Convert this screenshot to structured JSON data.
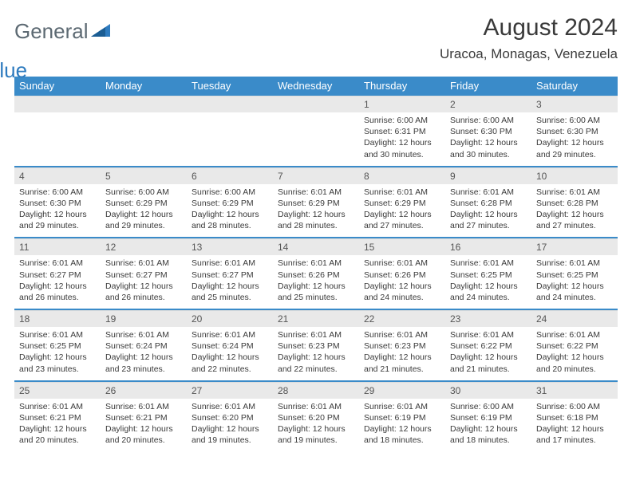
{
  "brand": {
    "word1": "General",
    "word2": "Blue"
  },
  "header": {
    "title": "August 2024",
    "location": "Uracoa, Monagas, Venezuela"
  },
  "colors": {
    "accent": "#3a8bc9",
    "header_text": "#ffffff",
    "daynum_bg": "#e9e9e9",
    "text": "#3a3a3a",
    "logo_grey": "#5d6a73",
    "logo_blue": "#2e7bbf",
    "background": "#ffffff"
  },
  "weekdays": [
    "Sunday",
    "Monday",
    "Tuesday",
    "Wednesday",
    "Thursday",
    "Friday",
    "Saturday"
  ],
  "weeks": [
    [
      {
        "n": "",
        "sunrise": "",
        "sunset": "",
        "daylight": ""
      },
      {
        "n": "",
        "sunrise": "",
        "sunset": "",
        "daylight": ""
      },
      {
        "n": "",
        "sunrise": "",
        "sunset": "",
        "daylight": ""
      },
      {
        "n": "",
        "sunrise": "",
        "sunset": "",
        "daylight": ""
      },
      {
        "n": "1",
        "sunrise": "Sunrise: 6:00 AM",
        "sunset": "Sunset: 6:31 PM",
        "daylight": "Daylight: 12 hours and 30 minutes."
      },
      {
        "n": "2",
        "sunrise": "Sunrise: 6:00 AM",
        "sunset": "Sunset: 6:30 PM",
        "daylight": "Daylight: 12 hours and 30 minutes."
      },
      {
        "n": "3",
        "sunrise": "Sunrise: 6:00 AM",
        "sunset": "Sunset: 6:30 PM",
        "daylight": "Daylight: 12 hours and 29 minutes."
      }
    ],
    [
      {
        "n": "4",
        "sunrise": "Sunrise: 6:00 AM",
        "sunset": "Sunset: 6:30 PM",
        "daylight": "Daylight: 12 hours and 29 minutes."
      },
      {
        "n": "5",
        "sunrise": "Sunrise: 6:00 AM",
        "sunset": "Sunset: 6:29 PM",
        "daylight": "Daylight: 12 hours and 29 minutes."
      },
      {
        "n": "6",
        "sunrise": "Sunrise: 6:00 AM",
        "sunset": "Sunset: 6:29 PM",
        "daylight": "Daylight: 12 hours and 28 minutes."
      },
      {
        "n": "7",
        "sunrise": "Sunrise: 6:01 AM",
        "sunset": "Sunset: 6:29 PM",
        "daylight": "Daylight: 12 hours and 28 minutes."
      },
      {
        "n": "8",
        "sunrise": "Sunrise: 6:01 AM",
        "sunset": "Sunset: 6:29 PM",
        "daylight": "Daylight: 12 hours and 27 minutes."
      },
      {
        "n": "9",
        "sunrise": "Sunrise: 6:01 AM",
        "sunset": "Sunset: 6:28 PM",
        "daylight": "Daylight: 12 hours and 27 minutes."
      },
      {
        "n": "10",
        "sunrise": "Sunrise: 6:01 AM",
        "sunset": "Sunset: 6:28 PM",
        "daylight": "Daylight: 12 hours and 27 minutes."
      }
    ],
    [
      {
        "n": "11",
        "sunrise": "Sunrise: 6:01 AM",
        "sunset": "Sunset: 6:27 PM",
        "daylight": "Daylight: 12 hours and 26 minutes."
      },
      {
        "n": "12",
        "sunrise": "Sunrise: 6:01 AM",
        "sunset": "Sunset: 6:27 PM",
        "daylight": "Daylight: 12 hours and 26 minutes."
      },
      {
        "n": "13",
        "sunrise": "Sunrise: 6:01 AM",
        "sunset": "Sunset: 6:27 PM",
        "daylight": "Daylight: 12 hours and 25 minutes."
      },
      {
        "n": "14",
        "sunrise": "Sunrise: 6:01 AM",
        "sunset": "Sunset: 6:26 PM",
        "daylight": "Daylight: 12 hours and 25 minutes."
      },
      {
        "n": "15",
        "sunrise": "Sunrise: 6:01 AM",
        "sunset": "Sunset: 6:26 PM",
        "daylight": "Daylight: 12 hours and 24 minutes."
      },
      {
        "n": "16",
        "sunrise": "Sunrise: 6:01 AM",
        "sunset": "Sunset: 6:25 PM",
        "daylight": "Daylight: 12 hours and 24 minutes."
      },
      {
        "n": "17",
        "sunrise": "Sunrise: 6:01 AM",
        "sunset": "Sunset: 6:25 PM",
        "daylight": "Daylight: 12 hours and 24 minutes."
      }
    ],
    [
      {
        "n": "18",
        "sunrise": "Sunrise: 6:01 AM",
        "sunset": "Sunset: 6:25 PM",
        "daylight": "Daylight: 12 hours and 23 minutes."
      },
      {
        "n": "19",
        "sunrise": "Sunrise: 6:01 AM",
        "sunset": "Sunset: 6:24 PM",
        "daylight": "Daylight: 12 hours and 23 minutes."
      },
      {
        "n": "20",
        "sunrise": "Sunrise: 6:01 AM",
        "sunset": "Sunset: 6:24 PM",
        "daylight": "Daylight: 12 hours and 22 minutes."
      },
      {
        "n": "21",
        "sunrise": "Sunrise: 6:01 AM",
        "sunset": "Sunset: 6:23 PM",
        "daylight": "Daylight: 12 hours and 22 minutes."
      },
      {
        "n": "22",
        "sunrise": "Sunrise: 6:01 AM",
        "sunset": "Sunset: 6:23 PM",
        "daylight": "Daylight: 12 hours and 21 minutes."
      },
      {
        "n": "23",
        "sunrise": "Sunrise: 6:01 AM",
        "sunset": "Sunset: 6:22 PM",
        "daylight": "Daylight: 12 hours and 21 minutes."
      },
      {
        "n": "24",
        "sunrise": "Sunrise: 6:01 AM",
        "sunset": "Sunset: 6:22 PM",
        "daylight": "Daylight: 12 hours and 20 minutes."
      }
    ],
    [
      {
        "n": "25",
        "sunrise": "Sunrise: 6:01 AM",
        "sunset": "Sunset: 6:21 PM",
        "daylight": "Daylight: 12 hours and 20 minutes."
      },
      {
        "n": "26",
        "sunrise": "Sunrise: 6:01 AM",
        "sunset": "Sunset: 6:21 PM",
        "daylight": "Daylight: 12 hours and 20 minutes."
      },
      {
        "n": "27",
        "sunrise": "Sunrise: 6:01 AM",
        "sunset": "Sunset: 6:20 PM",
        "daylight": "Daylight: 12 hours and 19 minutes."
      },
      {
        "n": "28",
        "sunrise": "Sunrise: 6:01 AM",
        "sunset": "Sunset: 6:20 PM",
        "daylight": "Daylight: 12 hours and 19 minutes."
      },
      {
        "n": "29",
        "sunrise": "Sunrise: 6:01 AM",
        "sunset": "Sunset: 6:19 PM",
        "daylight": "Daylight: 12 hours and 18 minutes."
      },
      {
        "n": "30",
        "sunrise": "Sunrise: 6:00 AM",
        "sunset": "Sunset: 6:19 PM",
        "daylight": "Daylight: 12 hours and 18 minutes."
      },
      {
        "n": "31",
        "sunrise": "Sunrise: 6:00 AM",
        "sunset": "Sunset: 6:18 PM",
        "daylight": "Daylight: 12 hours and 17 minutes."
      }
    ]
  ]
}
